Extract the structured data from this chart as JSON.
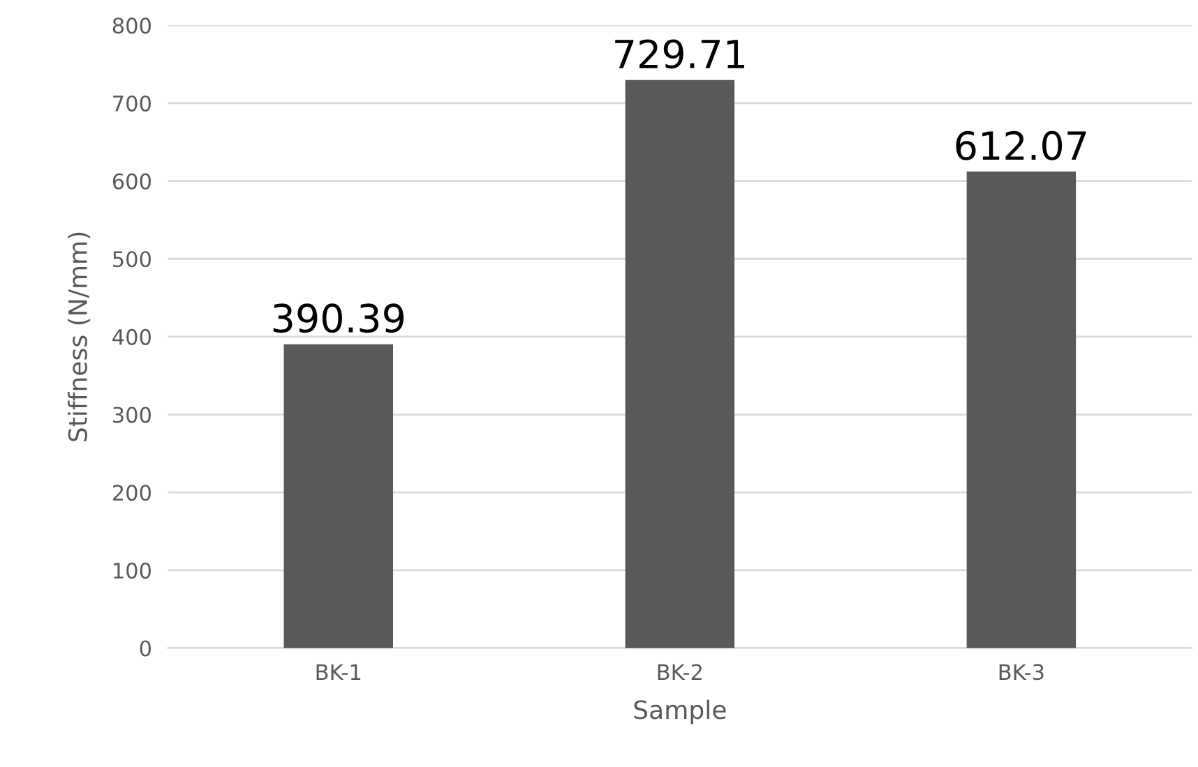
{
  "chart_data": {
    "type": "bar",
    "xlabel": "Sample",
    "ylabel": "Stiffness (N/mm)",
    "categories": [
      "BK-1",
      "BK-2",
      "BK-3"
    ],
    "values": [
      390.39,
      729.71,
      612.07
    ],
    "color": "#595959",
    "ylim": [
      0,
      800
    ],
    "yticks": [
      0,
      100,
      200,
      300,
      400,
      500,
      600,
      700,
      800
    ],
    "grid": "y",
    "data_labels": true
  }
}
